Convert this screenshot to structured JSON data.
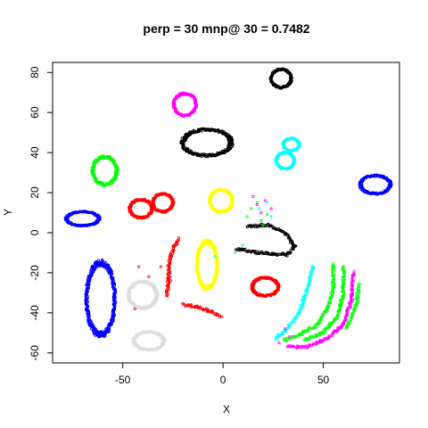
{
  "chart_data": {
    "type": "scatter",
    "title": "perp = 30 mnp@ 30 = 0.7482",
    "xlabel": "X",
    "ylabel": "Y",
    "xlim": [
      -85,
      88
    ],
    "ylim": [
      -65,
      85
    ],
    "xticks": [
      -50,
      0,
      50
    ],
    "yticks": [
      -60,
      -40,
      -20,
      0,
      20,
      40,
      60,
      80
    ],
    "grid": false,
    "legend": "none",
    "marker": "small open circles",
    "clusters": [
      {
        "color": "#000000",
        "shape": "ring",
        "center": [
          29,
          77
        ],
        "size": [
          10,
          9
        ]
      },
      {
        "color": "#000000",
        "shape": "ring",
        "center": [
          -8,
          45
        ],
        "size": [
          24,
          13
        ]
      },
      {
        "color": "#FF00FF",
        "shape": "ring",
        "center": [
          -19,
          64
        ],
        "size": [
          11,
          11
        ]
      },
      {
        "color": "#00FFFF",
        "shape": "ring",
        "center": [
          34,
          44
        ],
        "size": [
          8,
          6
        ]
      },
      {
        "color": "#00FFFF",
        "shape": "ring",
        "center": [
          31,
          36
        ],
        "size": [
          9,
          8
        ]
      },
      {
        "color": "#00FF00",
        "shape": "ring",
        "center": [
          -59,
          31
        ],
        "size": [
          12,
          14
        ]
      },
      {
        "color": "#0000FF",
        "shape": "ring",
        "center": [
          76,
          24
        ],
        "size": [
          15,
          9
        ]
      },
      {
        "color": "#0000FF",
        "shape": "ring",
        "center": [
          -70,
          7
        ],
        "size": [
          16,
          7
        ]
      },
      {
        "color": "#FF0000",
        "shape": "ring",
        "center": [
          -41,
          12
        ],
        "size": [
          11,
          9
        ]
      },
      {
        "color": "#FF0000",
        "shape": "ring",
        "center": [
          -30,
          15
        ],
        "size": [
          10,
          9
        ]
      },
      {
        "color": "#FFFF00",
        "shape": "ring",
        "center": [
          -1,
          16
        ],
        "size": [
          11,
          11
        ]
      },
      {
        "color": "#FFFF00",
        "shape": "ring",
        "center": [
          -8,
          -16
        ],
        "size": [
          10,
          23
        ]
      },
      {
        "color": "#0000FF",
        "shape": "ring",
        "center": [
          -61,
          -33
        ],
        "size": [
          14,
          36
        ]
      },
      {
        "color": "#DDDDDD",
        "shape": "ring",
        "center": [
          -40,
          -31
        ],
        "size": [
          14,
          13
        ]
      },
      {
        "color": "#DDDDDD",
        "shape": "ring",
        "center": [
          -37,
          -54
        ],
        "size": [
          15,
          9
        ]
      },
      {
        "color": "#FF0000",
        "shape": "ring",
        "center": [
          21,
          -27
        ],
        "size": [
          13,
          9
        ]
      },
      {
        "color": "#000000",
        "shape": "arc",
        "points": [
          [
            12,
            3
          ],
          [
            22,
            4
          ],
          [
            31,
            0
          ],
          [
            36,
            -7
          ],
          [
            32,
            -11
          ],
          [
            18,
            -10
          ],
          [
            6,
            -8
          ]
        ]
      },
      {
        "color": "#FF0000",
        "shape": "arc",
        "points": [
          [
            -22,
            -3
          ],
          [
            -25,
            -8
          ],
          [
            -27,
            -15
          ],
          [
            -27,
            -22
          ],
          [
            -28,
            -32
          ]
        ]
      },
      {
        "color": "#FF0000",
        "shape": "arc",
        "points": [
          [
            -20,
            -36
          ],
          [
            -12,
            -37
          ],
          [
            -5,
            -40
          ],
          [
            -1,
            -42
          ]
        ]
      },
      {
        "color": "#00FFFF",
        "shape": "arc",
        "points": [
          [
            45,
            -17
          ],
          [
            42,
            -28
          ],
          [
            38,
            -40
          ],
          [
            32,
            -48
          ],
          [
            26,
            -53
          ]
        ]
      },
      {
        "color": "#00FF00",
        "shape": "arc",
        "points": [
          [
            55,
            -16
          ],
          [
            55,
            -28
          ],
          [
            52,
            -38
          ],
          [
            47,
            -46
          ],
          [
            38,
            -51
          ],
          [
            30,
            -54
          ]
        ]
      },
      {
        "color": "#00FF00",
        "shape": "arc",
        "points": [
          [
            60,
            -17
          ],
          [
            60,
            -30
          ],
          [
            57,
            -42
          ],
          [
            50,
            -50
          ],
          [
            40,
            -54
          ]
        ]
      },
      {
        "color": "#FF00FF",
        "shape": "arc",
        "points": [
          [
            65,
            -20
          ],
          [
            64,
            -34
          ],
          [
            60,
            -46
          ],
          [
            52,
            -53
          ],
          [
            42,
            -57
          ],
          [
            32,
            -57
          ]
        ]
      },
      {
        "color": "#00FF00",
        "shape": "arc",
        "points": [
          [
            68,
            -26
          ],
          [
            66,
            -38
          ],
          [
            61,
            -48
          ]
        ]
      },
      {
        "color": "#00FF00",
        "shape": "scatter",
        "points": [
          [
            12,
            8
          ],
          [
            14,
            12
          ],
          [
            17,
            15
          ],
          [
            19,
            6
          ],
          [
            22,
            9
          ],
          [
            20,
            4
          ]
        ]
      },
      {
        "color": "#FF00FF",
        "shape": "scatter",
        "points": [
          [
            15,
            18
          ],
          [
            17,
            14
          ],
          [
            19,
            10
          ],
          [
            21,
            16
          ],
          [
            24,
            12
          ]
        ]
      },
      {
        "color": "#00FFFF",
        "shape": "scatter",
        "points": [
          [
            18,
            12
          ],
          [
            22,
            15
          ],
          [
            24,
            8
          ],
          [
            10,
            -6
          ],
          [
            6,
            -10
          ],
          [
            -4,
            -12
          ]
        ]
      },
      {
        "color": "#FF0000",
        "shape": "scatter",
        "points": [
          [
            -42,
            -17
          ],
          [
            -31,
            -17
          ],
          [
            -37,
            -22
          ],
          [
            -26,
            -24
          ],
          [
            -44,
            -38
          ]
        ]
      },
      {
        "color": "#FF00FF",
        "shape": "scatter",
        "points": [
          [
            33,
            -52
          ],
          [
            31,
            -48
          ],
          [
            28,
            -55
          ]
        ]
      }
    ]
  }
}
